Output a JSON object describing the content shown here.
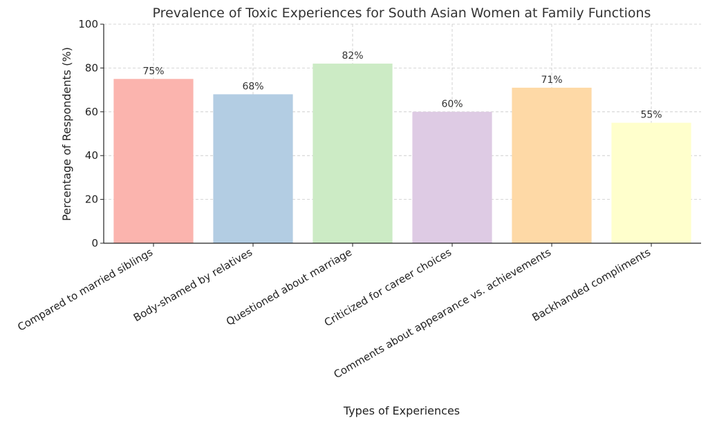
{
  "chart_data": {
    "type": "bar",
    "title": "Prevalence of Toxic Experiences for South Asian Women at Family Functions",
    "xlabel": "Types of Experiences",
    "ylabel": "Percentage of Respondents (%)",
    "ylim": [
      0,
      100
    ],
    "yticks": [
      "0",
      "20",
      "40",
      "60",
      "80",
      "100"
    ],
    "grid": true,
    "categories": [
      "Compared to married siblings",
      "Body-shamed by relatives",
      "Questioned about marriage",
      "Criticized for career choices",
      "Comments about appearance vs. achievements",
      "Backhanded compliments"
    ],
    "values": [
      75,
      68,
      82,
      60,
      71,
      55
    ],
    "value_labels": [
      "75%",
      "68%",
      "82%",
      "60%",
      "71%",
      "55%"
    ],
    "colors": [
      "#fbb4ae",
      "#b3cde3",
      "#ccebc5",
      "#decbe4",
      "#fed9a6",
      "#ffffcc"
    ]
  }
}
